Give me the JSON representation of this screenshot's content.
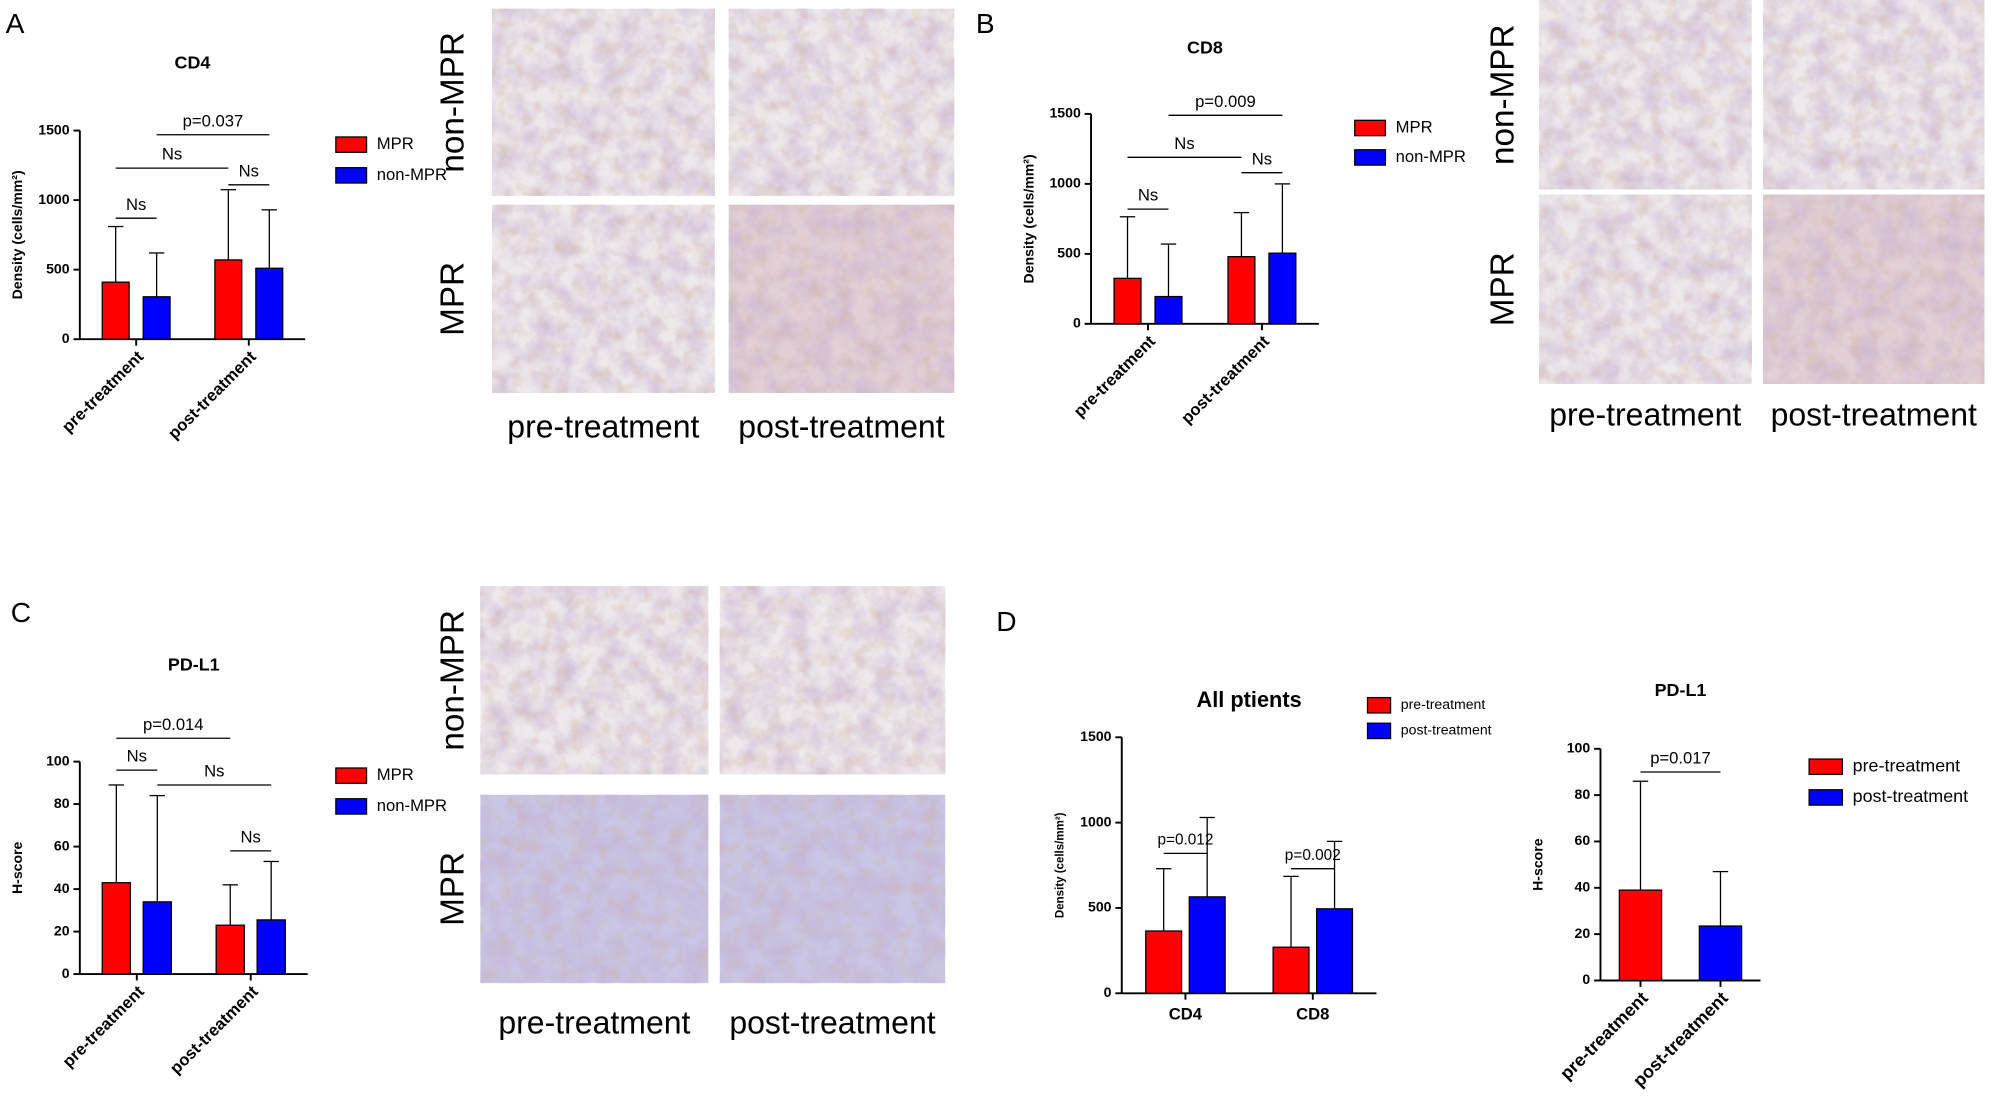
{
  "chart_data": [
    {
      "type": "bar",
      "title": "CD4",
      "y_label": "Density (cells/mm²)",
      "categories": [
        "pre-treatment",
        "post-treatment"
      ],
      "series": [
        {
          "name": "MPR",
          "color": "#ff0000",
          "values": [
            410,
            570
          ],
          "errors": [
            400,
            505
          ]
        },
        {
          "name": "non-MPR",
          "color": "#0000ff",
          "values": [
            305,
            510
          ],
          "errors": [
            315,
            420
          ]
        }
      ],
      "ylim": [
        0,
        1500
      ],
      "yticks": [
        0,
        500,
        1000,
        1500
      ],
      "annotations": [
        "Ns",
        "Ns",
        "Ns",
        "p=0.037"
      ]
    },
    {
      "type": "bar",
      "title": "CD8",
      "y_label": "Density (cells/mm²)",
      "categories": [
        "pre-treatment",
        "post-treatment"
      ],
      "series": [
        {
          "name": "MPR",
          "color": "#ff0000",
          "values": [
            325,
            480
          ],
          "errors": [
            440,
            315
          ]
        },
        {
          "name": "non-MPR",
          "color": "#0000ff",
          "values": [
            195,
            505
          ],
          "errors": [
            375,
            495
          ]
        }
      ],
      "ylim": [
        0,
        1500
      ],
      "yticks": [
        0,
        500,
        1000,
        1500
      ],
      "annotations": [
        "Ns",
        "Ns",
        "Ns",
        "p=0.009"
      ]
    },
    {
      "type": "bar",
      "title": "PD-L1",
      "y_label": "H-score",
      "categories": [
        "pre-treatment",
        "post-treatment"
      ],
      "series": [
        {
          "name": "MPR",
          "color": "#ff0000",
          "values": [
            43,
            23
          ],
          "errors": [
            46,
            19
          ]
        },
        {
          "name": "non-MPR",
          "color": "#0000ff",
          "values": [
            34,
            25.5
          ],
          "errors": [
            50,
            27.5
          ]
        }
      ],
      "ylim": [
        0,
        100
      ],
      "yticks": [
        0,
        20,
        40,
        60,
        80,
        100
      ],
      "annotations": [
        "Ns",
        "Ns",
        "Ns",
        "p=0.014"
      ]
    },
    {
      "type": "bar",
      "title": "All ptients",
      "y_label": "Density (cells/mm²)",
      "categories": [
        "CD4",
        "CD8"
      ],
      "series": [
        {
          "name": "pre-treatment",
          "color": "#ff0000",
          "values": [
            365,
            270
          ],
          "errors": [
            365,
            415
          ]
        },
        {
          "name": "post-treatment",
          "color": "#0000ff",
          "values": [
            565,
            495
          ],
          "errors": [
            465,
            395
          ]
        }
      ],
      "ylim": [
        0,
        1500
      ],
      "yticks": [
        0,
        500,
        1000,
        1500
      ],
      "annotations": [
        "p=0.012",
        "p=0.002"
      ]
    },
    {
      "type": "bar",
      "title": "PD-L1",
      "y_label": "H-score",
      "categories": [
        "pre-treatment",
        "post-treatment"
      ],
      "values": [
        39,
        23.5
      ],
      "errors": [
        47,
        23.5
      ],
      "colors": [
        "#ff0000",
        "#0000ff"
      ],
      "ylim": [
        0,
        100
      ],
      "yticks": [
        0,
        20,
        40,
        60,
        80,
        100
      ],
      "annotations": [
        "p=0.017"
      ]
    }
  ],
  "panels": [
    {
      "label": "A",
      "image_rows": [
        "non-MPR",
        "MPR"
      ],
      "image_cols": [
        "pre-treatment",
        "post-treatment"
      ]
    },
    {
      "label": "B",
      "image_rows": [
        "non-MPR",
        "MPR"
      ],
      "image_cols": [
        "pre-treatment",
        "post-treatment"
      ]
    },
    {
      "label": "C",
      "image_rows": [
        "non-MPR",
        "MPR"
      ],
      "image_cols": [
        "pre-treatment",
        "post-treatment"
      ]
    },
    {
      "label": "D"
    }
  ]
}
